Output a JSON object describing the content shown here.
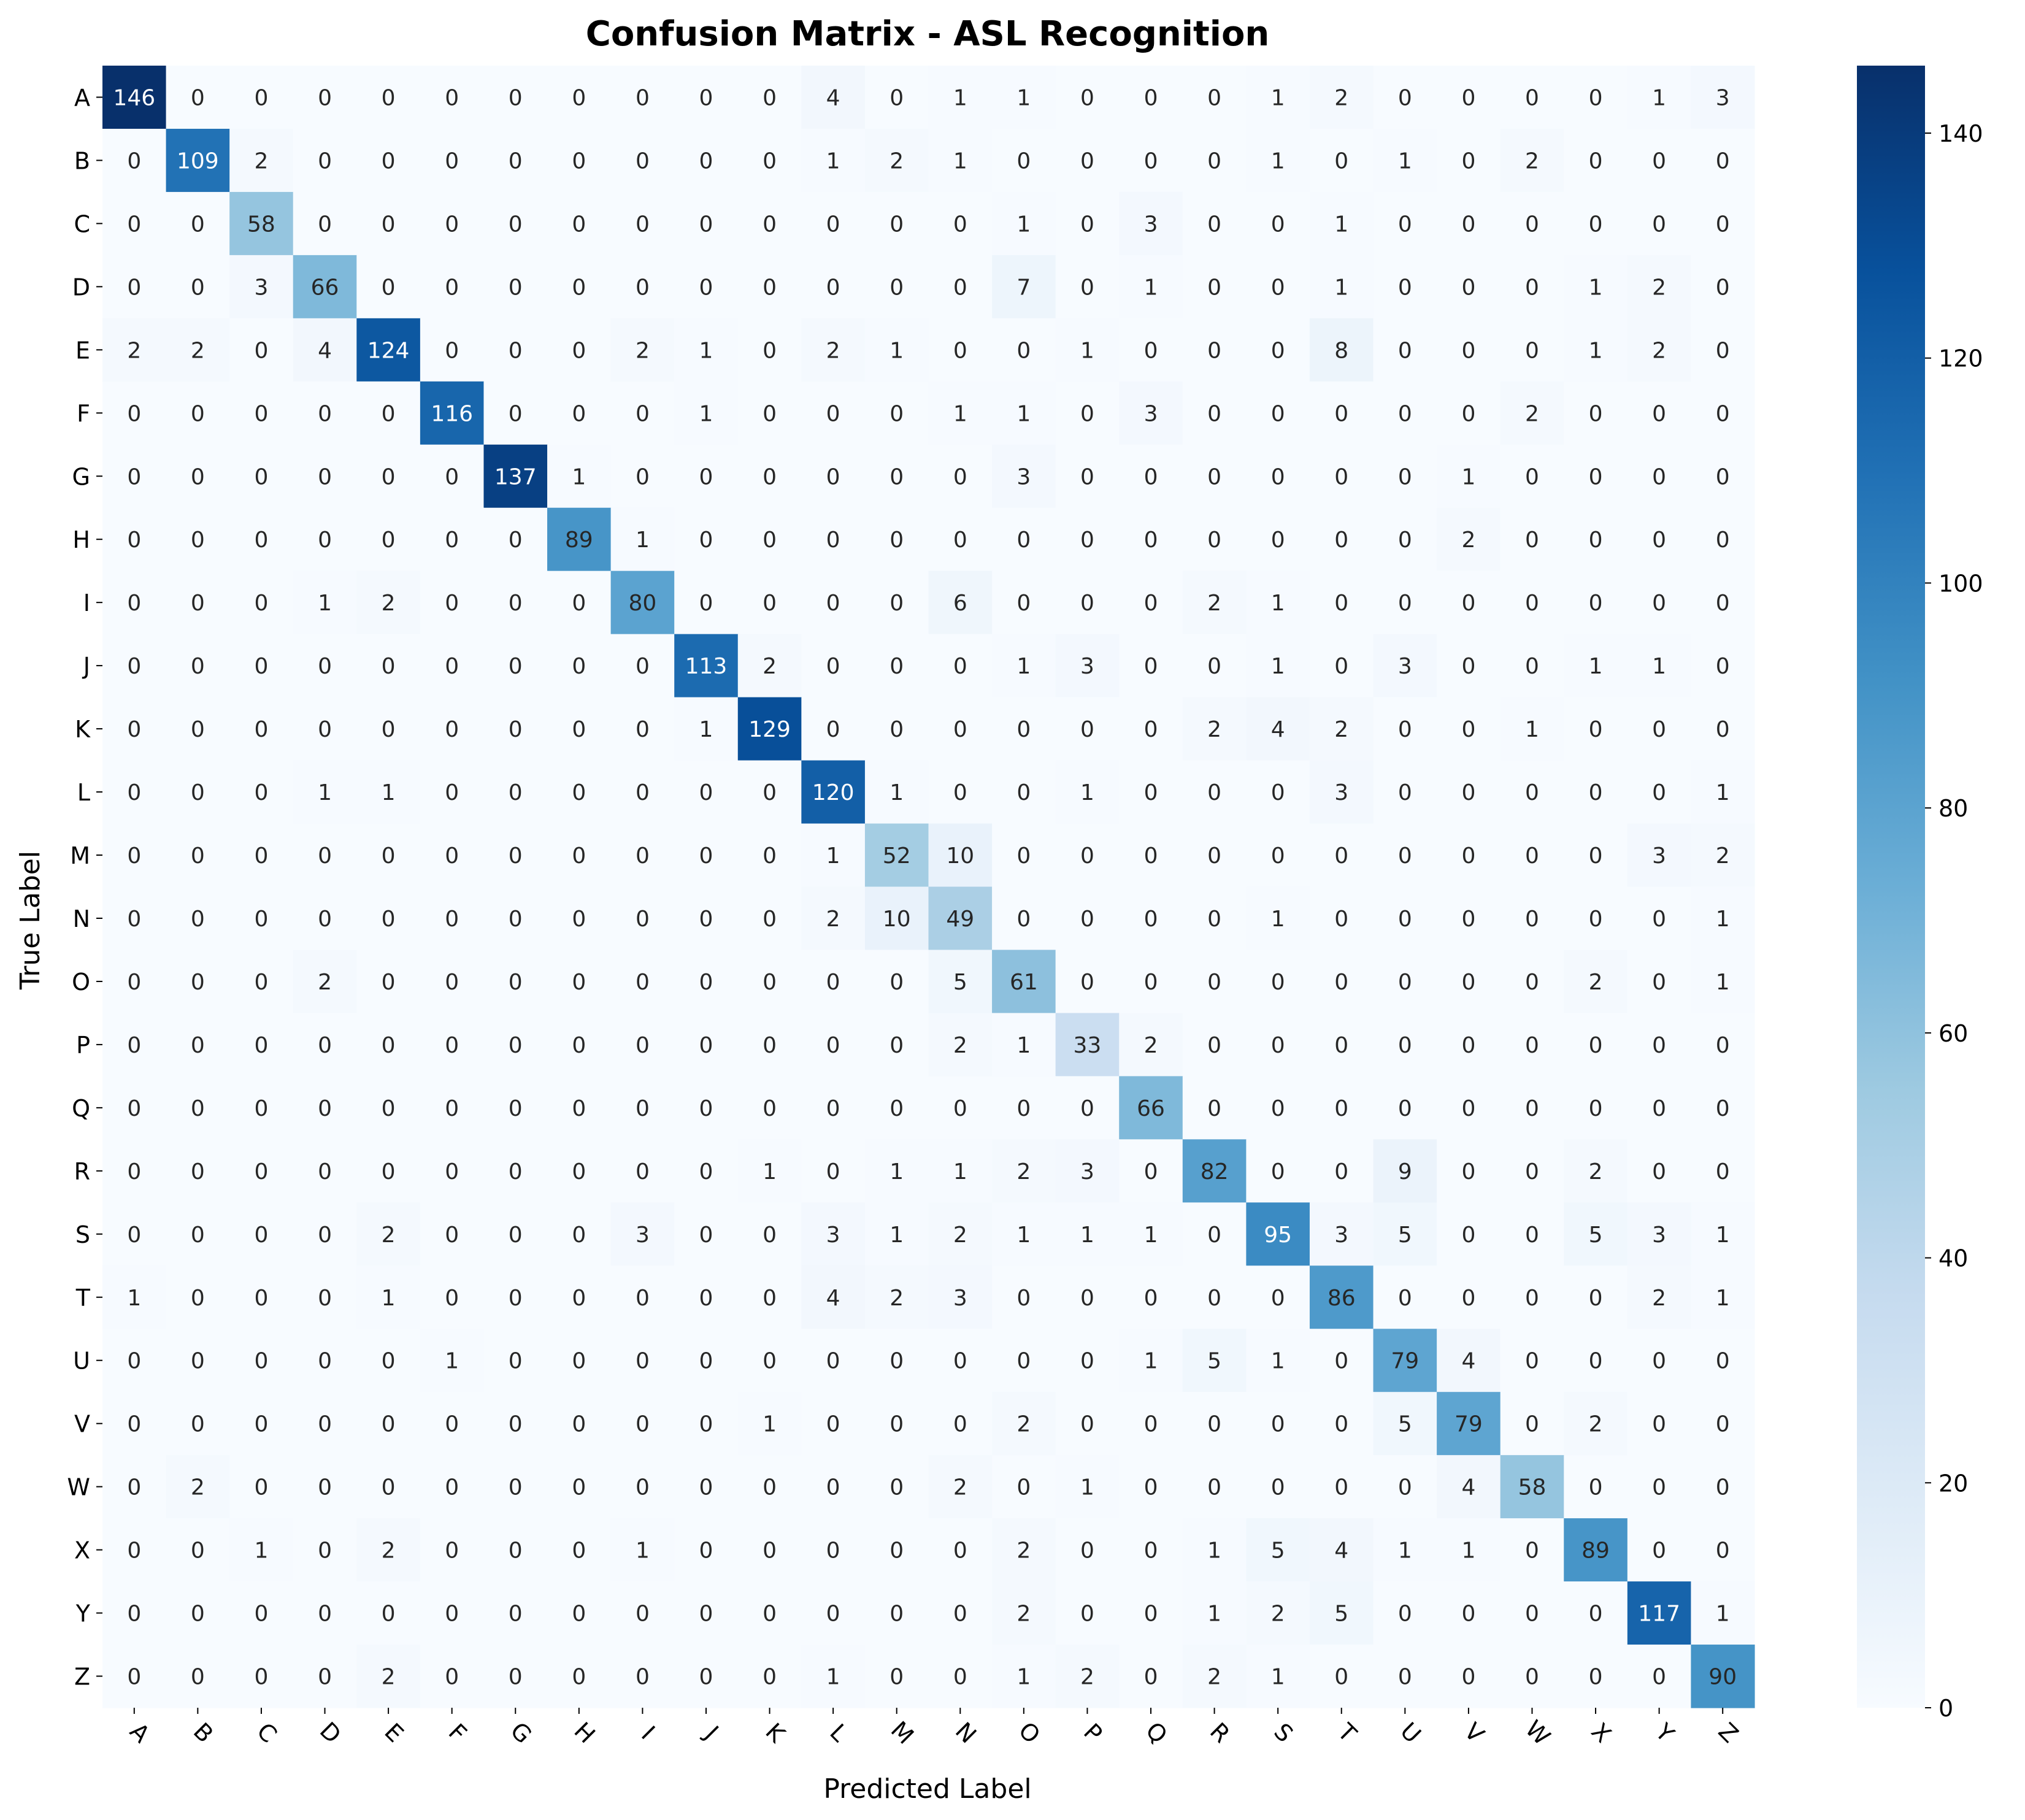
{
  "chart_data": {
    "type": "heatmap",
    "title": "Confusion Matrix - ASL Recognition",
    "xlabel": "Predicted Label",
    "ylabel": "True Label",
    "x_categories": [
      "A",
      "B",
      "C",
      "D",
      "E",
      "F",
      "G",
      "H",
      "I",
      "J",
      "K",
      "L",
      "M",
      "N",
      "O",
      "P",
      "Q",
      "R",
      "S",
      "T",
      "U",
      "V",
      "W",
      "X",
      "Y",
      "Z"
    ],
    "y_categories": [
      "A",
      "B",
      "C",
      "D",
      "E",
      "F",
      "G",
      "H",
      "I",
      "J",
      "K",
      "L",
      "M",
      "N",
      "O",
      "P",
      "Q",
      "R",
      "S",
      "T",
      "U",
      "V",
      "W",
      "X",
      "Y",
      "Z"
    ],
    "values": [
      [
        146,
        0,
        0,
        0,
        0,
        0,
        0,
        0,
        0,
        0,
        0,
        4,
        0,
        1,
        1,
        0,
        0,
        0,
        1,
        2,
        0,
        0,
        0,
        0,
        1,
        3
      ],
      [
        0,
        109,
        2,
        0,
        0,
        0,
        0,
        0,
        0,
        0,
        0,
        1,
        2,
        1,
        0,
        0,
        0,
        0,
        1,
        0,
        1,
        0,
        2,
        0,
        0,
        0
      ],
      [
        0,
        0,
        58,
        0,
        0,
        0,
        0,
        0,
        0,
        0,
        0,
        0,
        0,
        0,
        1,
        0,
        3,
        0,
        0,
        1,
        0,
        0,
        0,
        0,
        0,
        0
      ],
      [
        0,
        0,
        3,
        66,
        0,
        0,
        0,
        0,
        0,
        0,
        0,
        0,
        0,
        0,
        7,
        0,
        1,
        0,
        0,
        1,
        0,
        0,
        0,
        1,
        2,
        0
      ],
      [
        2,
        2,
        0,
        4,
        124,
        0,
        0,
        0,
        2,
        1,
        0,
        2,
        1,
        0,
        0,
        1,
        0,
        0,
        0,
        8,
        0,
        0,
        0,
        1,
        2,
        0
      ],
      [
        0,
        0,
        0,
        0,
        0,
        116,
        0,
        0,
        0,
        1,
        0,
        0,
        0,
        1,
        1,
        0,
        3,
        0,
        0,
        0,
        0,
        0,
        2,
        0,
        0,
        0
      ],
      [
        0,
        0,
        0,
        0,
        0,
        0,
        137,
        1,
        0,
        0,
        0,
        0,
        0,
        0,
        3,
        0,
        0,
        0,
        0,
        0,
        0,
        1,
        0,
        0,
        0,
        0
      ],
      [
        0,
        0,
        0,
        0,
        0,
        0,
        0,
        89,
        1,
        0,
        0,
        0,
        0,
        0,
        0,
        0,
        0,
        0,
        0,
        0,
        0,
        2,
        0,
        0,
        0,
        0
      ],
      [
        0,
        0,
        0,
        1,
        2,
        0,
        0,
        0,
        80,
        0,
        0,
        0,
        0,
        6,
        0,
        0,
        0,
        2,
        1,
        0,
        0,
        0,
        0,
        0,
        0,
        0
      ],
      [
        0,
        0,
        0,
        0,
        0,
        0,
        0,
        0,
        0,
        113,
        2,
        0,
        0,
        0,
        1,
        3,
        0,
        0,
        1,
        0,
        3,
        0,
        0,
        1,
        1,
        0
      ],
      [
        0,
        0,
        0,
        0,
        0,
        0,
        0,
        0,
        0,
        1,
        129,
        0,
        0,
        0,
        0,
        0,
        0,
        2,
        4,
        2,
        0,
        0,
        1,
        0,
        0,
        0
      ],
      [
        0,
        0,
        0,
        1,
        1,
        0,
        0,
        0,
        0,
        0,
        0,
        120,
        1,
        0,
        0,
        1,
        0,
        0,
        0,
        3,
        0,
        0,
        0,
        0,
        0,
        1
      ],
      [
        0,
        0,
        0,
        0,
        0,
        0,
        0,
        0,
        0,
        0,
        0,
        1,
        52,
        10,
        0,
        0,
        0,
        0,
        0,
        0,
        0,
        0,
        0,
        0,
        3,
        2
      ],
      [
        0,
        0,
        0,
        0,
        0,
        0,
        0,
        0,
        0,
        0,
        0,
        2,
        10,
        49,
        0,
        0,
        0,
        0,
        1,
        0,
        0,
        0,
        0,
        0,
        0,
        1
      ],
      [
        0,
        0,
        0,
        2,
        0,
        0,
        0,
        0,
        0,
        0,
        0,
        0,
        0,
        5,
        61,
        0,
        0,
        0,
        0,
        0,
        0,
        0,
        0,
        2,
        0,
        1
      ],
      [
        0,
        0,
        0,
        0,
        0,
        0,
        0,
        0,
        0,
        0,
        0,
        0,
        0,
        2,
        1,
        33,
        2,
        0,
        0,
        0,
        0,
        0,
        0,
        0,
        0,
        0
      ],
      [
        0,
        0,
        0,
        0,
        0,
        0,
        0,
        0,
        0,
        0,
        0,
        0,
        0,
        0,
        0,
        0,
        66,
        0,
        0,
        0,
        0,
        0,
        0,
        0,
        0,
        0
      ],
      [
        0,
        0,
        0,
        0,
        0,
        0,
        0,
        0,
        0,
        0,
        1,
        0,
        1,
        1,
        2,
        3,
        0,
        82,
        0,
        0,
        9,
        0,
        0,
        2,
        0,
        0
      ],
      [
        0,
        0,
        0,
        0,
        2,
        0,
        0,
        0,
        3,
        0,
        0,
        3,
        1,
        2,
        1,
        1,
        1,
        0,
        95,
        3,
        5,
        0,
        0,
        5,
        3,
        1
      ],
      [
        1,
        0,
        0,
        0,
        1,
        0,
        0,
        0,
        0,
        0,
        0,
        4,
        2,
        3,
        0,
        0,
        0,
        0,
        0,
        86,
        0,
        0,
        0,
        0,
        2,
        1
      ],
      [
        0,
        0,
        0,
        0,
        0,
        1,
        0,
        0,
        0,
        0,
        0,
        0,
        0,
        0,
        0,
        0,
        1,
        5,
        1,
        0,
        79,
        4,
        0,
        0,
        0,
        0
      ],
      [
        0,
        0,
        0,
        0,
        0,
        0,
        0,
        0,
        0,
        0,
        1,
        0,
        0,
        0,
        2,
        0,
        0,
        0,
        0,
        0,
        5,
        79,
        0,
        2,
        0,
        0
      ],
      [
        0,
        2,
        0,
        0,
        0,
        0,
        0,
        0,
        0,
        0,
        0,
        0,
        0,
        2,
        0,
        1,
        0,
        0,
        0,
        0,
        0,
        4,
        58,
        0,
        0,
        0
      ],
      [
        0,
        0,
        1,
        0,
        2,
        0,
        0,
        0,
        1,
        0,
        0,
        0,
        0,
        0,
        2,
        0,
        0,
        1,
        5,
        4,
        1,
        1,
        0,
        89,
        0,
        0
      ],
      [
        0,
        0,
        0,
        0,
        0,
        0,
        0,
        0,
        0,
        0,
        0,
        0,
        0,
        0,
        2,
        0,
        0,
        1,
        2,
        5,
        0,
        0,
        0,
        0,
        117,
        1
      ],
      [
        0,
        0,
        0,
        0,
        2,
        0,
        0,
        0,
        0,
        0,
        0,
        1,
        0,
        0,
        1,
        2,
        0,
        2,
        1,
        0,
        0,
        0,
        0,
        0,
        0,
        90
      ]
    ],
    "colorbar": {
      "min": 0,
      "max": 146,
      "ticks": [
        0,
        20,
        40,
        60,
        80,
        100,
        120,
        140
      ]
    },
    "colormap": [
      "#f7fbff",
      "#deebf7",
      "#c6dbef",
      "#9ecae1",
      "#6baed6",
      "#4292c6",
      "#2171b5",
      "#08519c",
      "#08306b"
    ],
    "grid": false,
    "legend": "colorbar-right"
  }
}
